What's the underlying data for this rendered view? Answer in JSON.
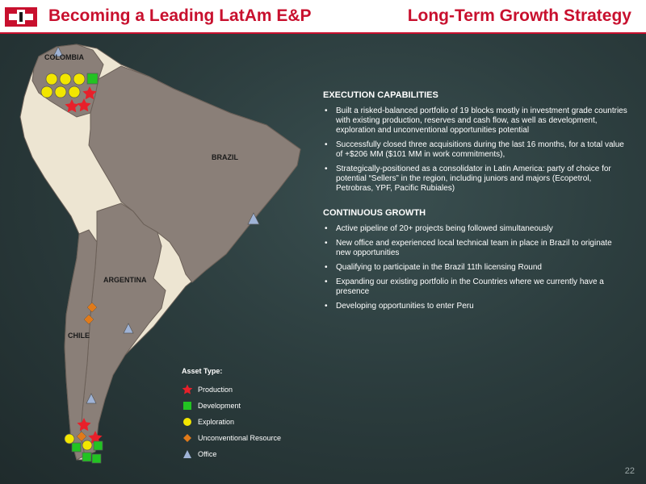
{
  "header": {
    "title_left": "Becoming a Leading LatAm E&P",
    "title_right": "Long-Term Growth Strategy"
  },
  "colors": {
    "accent": "#c8102e",
    "map_country": "#8a7f78",
    "map_other": "#ede5d2",
    "production": "#e8202a",
    "development": "#22c322",
    "exploration": "#f2e600",
    "unconventional": "#e07a1a",
    "office": "#9fb3d6"
  },
  "map": {
    "labels": {
      "colombia": "COLOMBIA",
      "brazil": "BRAZIL",
      "argentina": "ARGENTINA",
      "chile": "CHILE"
    }
  },
  "legend": {
    "title": "Asset Type:",
    "items": [
      {
        "icon": "star-icon",
        "label": "Production"
      },
      {
        "icon": "square-icon",
        "label": "Development"
      },
      {
        "icon": "circle-icon",
        "label": "Exploration"
      },
      {
        "icon": "diamond-icon",
        "label": "Unconventional Resource"
      },
      {
        "icon": "triangle-icon",
        "label": "Office"
      }
    ]
  },
  "sections": [
    {
      "heading": "EXECUTION CAPABILITIES",
      "bullets": [
        "Built a risked-balanced portfolio of 19 blocks mostly in investment grade countries with existing production, reserves and cash flow, as well as development, exploration and unconventional opportunities potential",
        "Successfully closed three acquisitions during the last 16 months, for a total value of +$206 MM ($101 MM in work commitments),",
        "Strategically-positioned as a consolidator in Latin America: party of choice for potential “Sellers” in the region, including juniors and majors (Ecopetrol, Petrobras, YPF, Pacific Rubiales)"
      ]
    },
    {
      "heading": "CONTINUOUS GROWTH",
      "bullets": [
        "Active pipeline of 20+ projects being followed simultaneously",
        "New office and experienced local technical team in place in Brazil to originate new opportunities",
        "Qualifying to participate in the Brazil 11th licensing Round",
        "Expanding our existing portfolio in the Countries where we currently have a presence",
        "Developing opportunities to enter Peru"
      ]
    }
  ],
  "page_number": "22"
}
